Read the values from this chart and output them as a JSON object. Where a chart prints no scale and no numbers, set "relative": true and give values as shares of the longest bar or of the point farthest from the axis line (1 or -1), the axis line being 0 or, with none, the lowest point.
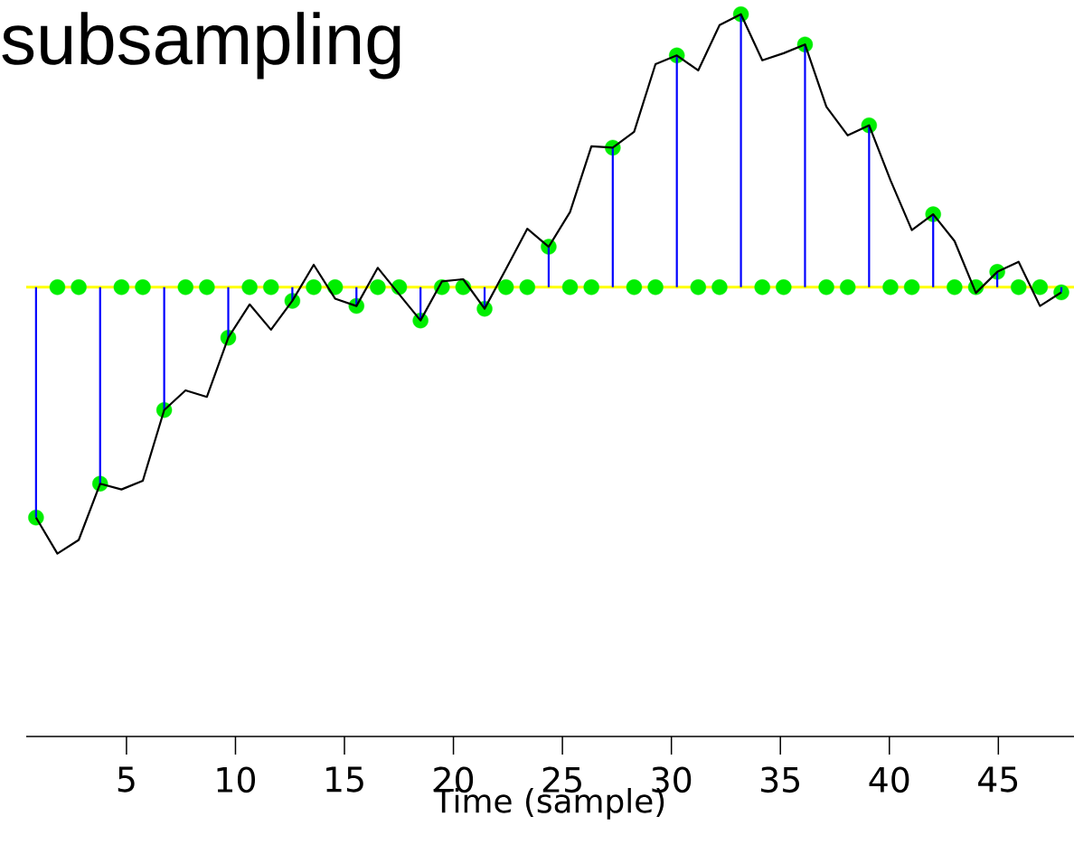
{
  "chart_data": {
    "type": "line",
    "title": "subsampling",
    "xlabel": "Time (sample)",
    "relative": true,
    "xlim": [
      0.4,
      48.47
    ],
    "xticks": [
      5,
      10,
      15,
      20,
      25,
      30,
      35,
      40,
      45
    ],
    "grid": false,
    "ref_lines": [
      {
        "axis": "y",
        "value": 0,
        "color": "#ffff00"
      }
    ],
    "series": [
      {
        "type": "scatter",
        "color": "#00ee00",
        "marker": "circle",
        "x": [
          0.85,
          1.83,
          2.81,
          3.79,
          4.77,
          5.75,
          6.73,
          7.71,
          8.69,
          9.67,
          10.65,
          11.63,
          12.61,
          13.59,
          14.57,
          15.55,
          16.53,
          17.51,
          18.49,
          19.47,
          20.45,
          21.43,
          22.41,
          23.39,
          24.37,
          25.35,
          26.33,
          27.31,
          28.29,
          29.27,
          30.25,
          31.23,
          32.21,
          33.19,
          34.17,
          35.15,
          36.13,
          37.11,
          38.09,
          39.07,
          40.05,
          41.03,
          42.01,
          42.99,
          43.97,
          44.95,
          45.93,
          46.91,
          47.89
        ],
        "values": [
          -0.844,
          0,
          0,
          -0.72,
          0,
          0,
          -0.45,
          0,
          0,
          -0.185,
          0,
          0,
          -0.05,
          0,
          0,
          -0.069,
          0,
          0,
          -0.122,
          0,
          0,
          -0.079,
          0,
          0,
          0.148,
          0,
          0,
          0.511,
          0,
          0,
          0.849,
          0,
          0,
          1,
          0,
          0,
          0.889,
          0,
          0,
          0.593,
          0,
          0,
          0.267,
          0,
          0,
          0.056,
          0,
          0,
          -0.019
        ]
      },
      {
        "type": "bar",
        "color": "#0000ff",
        "x": [
          0.85,
          3.79,
          6.73,
          9.67,
          12.61,
          15.55,
          18.49,
          21.43,
          24.37,
          27.31,
          30.25,
          33.19,
          36.13,
          39.07,
          42.01,
          44.95,
          47.89
        ],
        "values": [
          -0.844,
          -0.72,
          -0.45,
          -0.185,
          -0.05,
          -0.069,
          -0.122,
          -0.079,
          0.148,
          0.511,
          0.849,
          1,
          0.889,
          0.593,
          0.267,
          0.056,
          -0.019
        ]
      },
      {
        "color": "#000000",
        "marker": "none",
        "line_style": "solid",
        "x": [
          0.85,
          1.83,
          2.81,
          3.79,
          4.77,
          5.75,
          6.73,
          7.71,
          8.69,
          9.67,
          10.65,
          11.63,
          12.61,
          13.59,
          14.57,
          15.55,
          16.53,
          17.51,
          18.49,
          19.47,
          20.45,
          21.43,
          22.41,
          23.39,
          24.37,
          25.35,
          26.33,
          27.31,
          28.29,
          29.27,
          30.25,
          31.23,
          32.21,
          33.19,
          34.17,
          35.15,
          36.13,
          37.11,
          38.09,
          39.07,
          40.05,
          41.03,
          42.01,
          42.99,
          43.97,
          44.95,
          45.93,
          46.91,
          47.89
        ],
        "values": [
          -0.844,
          -0.976,
          -0.926,
          -0.72,
          -0.741,
          -0.709,
          -0.45,
          -0.378,
          -0.402,
          -0.185,
          -0.063,
          -0.156,
          -0.05,
          0.082,
          -0.042,
          -0.069,
          0.071,
          -0.026,
          -0.122,
          0.021,
          0.029,
          -0.079,
          0.066,
          0.214,
          0.148,
          0.275,
          0.516,
          0.511,
          0.569,
          0.817,
          0.849,
          0.794,
          0.96,
          1,
          0.831,
          0.857,
          0.889,
          0.661,
          0.556,
          0.593,
          0.392,
          0.209,
          0.267,
          0.169,
          -0.021,
          0.056,
          0.093,
          -0.069,
          -0.019
        ]
      }
    ]
  }
}
